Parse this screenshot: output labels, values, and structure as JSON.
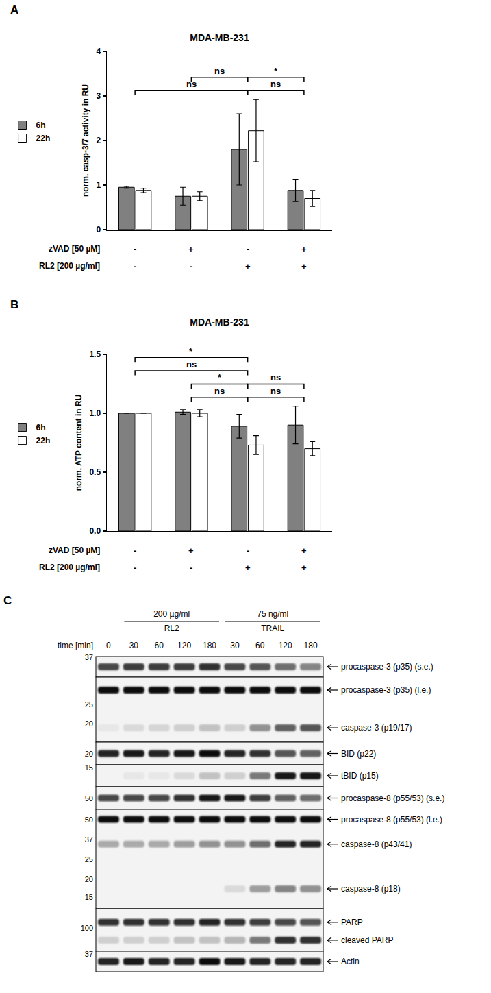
{
  "chart_data": [
    {
      "type": "bar",
      "panel_label": "A",
      "title": "MDA-MB-231",
      "y_label": "norm. casp-3/7 activity in RU",
      "categories": [
        null,
        null,
        null,
        null
      ],
      "conditions": [
        {
          "label": "zVAD [50 µM]",
          "values": [
            "-",
            "+",
            "-",
            "+"
          ]
        },
        {
          "label": "RL2 [200 µg/ml]",
          "values": [
            "-",
            "-",
            "+",
            "+"
          ]
        }
      ],
      "series": [
        {
          "name": "6h",
          "color": "#808080",
          "values": [
            0.95,
            0.75,
            1.8,
            0.88
          ],
          "errors": [
            0.02,
            0.2,
            0.8,
            0.25
          ]
        },
        {
          "name": "22h",
          "color": "#ffffff",
          "values": [
            0.88,
            0.75,
            2.22,
            0.7
          ],
          "errors": [
            0.05,
            0.1,
            0.7,
            0.18
          ]
        }
      ],
      "ylim": [
        0,
        4
      ],
      "yticks": [
        0,
        1,
        2,
        3,
        4
      ],
      "grid": false,
      "legend": "left",
      "tick_labels": "y",
      "comparisons": [
        [
          {
            "from": 0,
            "to": 2,
            "label": "ns"
          },
          {
            "from": 2,
            "to": 3,
            "label": "ns"
          }
        ],
        [
          {
            "from": 1,
            "to": 2,
            "label": "ns"
          },
          {
            "from": 2,
            "to": 3,
            "label": "*"
          }
        ]
      ]
    },
    {
      "type": "bar",
      "panel_label": "B",
      "title": "MDA-MB-231",
      "y_label": "norm. ATP content in RU",
      "categories": [
        null,
        null,
        null,
        null
      ],
      "conditions": [
        {
          "label": "zVAD [50 µM]",
          "values": [
            "-",
            "+",
            "-",
            "+"
          ]
        },
        {
          "label": "RL2 [200 µg/ml]",
          "values": [
            "-",
            "-",
            "+",
            "+"
          ]
        }
      ],
      "series": [
        {
          "name": "6h",
          "color": "#808080",
          "values": [
            1.0,
            1.01,
            0.89,
            0.9
          ],
          "errors": [
            0,
            0.02,
            0.1,
            0.16
          ]
        },
        {
          "name": "22h",
          "color": "#ffffff",
          "values": [
            1.0,
            1.0,
            0.73,
            0.7
          ],
          "errors": [
            0,
            0.03,
            0.08,
            0.06
          ]
        }
      ],
      "ylim": [
        0,
        1.5
      ],
      "yticks": [
        {
          "value": 0,
          "label": "0.0"
        },
        {
          "value": 0.5,
          "label": "0.5"
        },
        {
          "value": 1,
          "label": "1.0"
        },
        {
          "value": 1.5,
          "label": "1.5"
        }
      ],
      "grid": false,
      "legend": "left",
      "tick_labels": "y",
      "comparisons": [
        [
          {
            "from": 1,
            "to": 2,
            "label": "ns"
          },
          {
            "from": 2,
            "to": 3,
            "label": "ns"
          }
        ],
        [
          {
            "from": 1,
            "to": 2,
            "label": "*"
          },
          {
            "from": 2,
            "to": 3,
            "label": "ns"
          }
        ],
        [
          {
            "from": 0,
            "to": 2,
            "label": "ns"
          }
        ],
        [
          {
            "from": 0,
            "to": 2,
            "label": "*"
          }
        ]
      ]
    }
  ],
  "blot": {
    "panel_label": "C",
    "treatments": [
      {
        "dose": "200 µg/ml",
        "agent": "RL2",
        "lanes": [
          1,
          2,
          3,
          4
        ]
      },
      {
        "dose": "75 ng/ml",
        "agent": "TRAIL",
        "lanes": [
          5,
          6,
          7,
          8
        ]
      }
    ],
    "time_label": "time [min]",
    "times": [
      0,
      30,
      60,
      120,
      180,
      30,
      60,
      120,
      180
    ],
    "panels": [
      {
        "markers": [
          37
        ],
        "bands": [
          {
            "label": "procaspase-3 (p35) (s.e.)",
            "intensity": [
              0.7,
              0.75,
              0.75,
              0.75,
              0.8,
              0.7,
              0.65,
              0.55,
              0.45
            ]
          }
        ]
      },
      {
        "markers": [
          25,
          20
        ],
        "bands": [
          {
            "label": "procaspase-3 (p35) (l.e.)",
            "intensity": [
              0.95,
              0.95,
              0.95,
              0.95,
              0.95,
              0.95,
              0.95,
              0.95,
              0.95
            ]
          },
          {
            "label": "caspase-3 (p19/17)",
            "intensity": [
              0.05,
              0.1,
              0.12,
              0.15,
              0.2,
              0.15,
              0.4,
              0.6,
              0.65
            ]
          }
        ]
      },
      {
        "markers": [
          20
        ],
        "bands": [
          {
            "label": "BID (p22)",
            "intensity": [
              0.85,
              0.9,
              0.85,
              0.9,
              0.95,
              0.85,
              0.8,
              0.65,
              0.6
            ]
          }
        ]
      },
      {
        "markers": [
          15
        ],
        "bands": [
          {
            "label": "tBID (p15)",
            "intensity": [
              0,
              0.05,
              0.05,
              0.1,
              0.2,
              0.15,
              0.5,
              0.9,
              0.9
            ]
          }
        ]
      },
      {
        "markers": [
          50
        ],
        "bands": [
          {
            "label": "procaspase-8 (p55/53) (s.e.)",
            "intensity": [
              0.7,
              0.7,
              0.7,
              0.8,
              0.9,
              0.9,
              0.75,
              0.6,
              0.55
            ]
          }
        ]
      },
      {
        "markers": [
          50,
          37,
          25,
          20,
          15
        ],
        "bands": [
          {
            "label": "procaspase-8 (p55/53) (l.e.)",
            "intensity": [
              0.95,
              0.95,
              0.95,
              0.95,
              0.95,
              0.95,
              0.95,
              0.95,
              0.95
            ]
          },
          {
            "label": "caspase-8 (p43/41)",
            "intensity": [
              0.3,
              0.3,
              0.3,
              0.35,
              0.4,
              0.4,
              0.55,
              0.85,
              0.85
            ]
          },
          {
            "label": "caspase-8 (p18)",
            "intensity": [
              0,
              0,
              0,
              0,
              0,
              0.1,
              0.35,
              0.45,
              0.4
            ]
          }
        ]
      },
      {
        "markers": [
          100
        ],
        "bands": [
          {
            "label": "PARP",
            "intensity": [
              0.8,
              0.8,
              0.8,
              0.8,
              0.85,
              0.8,
              0.75,
              0.7,
              0.65
            ]
          },
          {
            "label": "cleaved PARP",
            "intensity": [
              0.15,
              0.15,
              0.15,
              0.2,
              0.2,
              0.25,
              0.5,
              0.8,
              0.8
            ]
          }
        ]
      },
      {
        "markers": [
          37
        ],
        "bands": [
          {
            "label": "Actin",
            "intensity": [
              0.85,
              0.9,
              0.85,
              0.85,
              0.95,
              0.9,
              0.85,
              0.85,
              0.85
            ]
          }
        ]
      }
    ]
  }
}
